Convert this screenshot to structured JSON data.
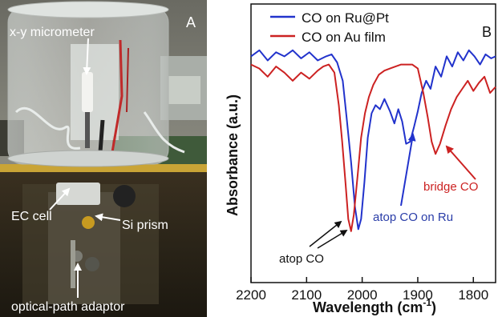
{
  "panel_a": {
    "panel_label": "A",
    "callouts": {
      "micrometer": "x-y micrometer",
      "ec_cell": "EC cell",
      "si_prism": "Si prism",
      "adaptor": "optical-path adaptor"
    }
  },
  "panel_b": {
    "panel_label": "B",
    "annotations": {
      "atop": "atop CO",
      "atop_ru": "atop CO on Ru",
      "bridge": "bridge  CO"
    }
  },
  "chart_data": {
    "type": "line",
    "title": "",
    "xlabel": "Wavelength (cm",
    "xlabel_sup": "-1",
    "xlabel_close": ")",
    "ylabel": "Absorbance (a.u.)",
    "xlim": [
      2200,
      1760
    ],
    "ylim": [
      0,
      1
    ],
    "x_ticks": [
      2200,
      2100,
      2000,
      1900,
      1800
    ],
    "x_tick_labels": [
      "2200",
      "2100",
      "2000",
      "1900",
      "1800"
    ],
    "legend_position": "top-center",
    "series": [
      {
        "name": "CO on Ru@Pt",
        "color": "#2233cc",
        "x": [
          2200,
          2185,
          2170,
          2155,
          2140,
          2125,
          2110,
          2095,
          2080,
          2065,
          2055,
          2045,
          2035,
          2028,
          2020,
          2013,
          2007,
          2002,
          1996,
          1990,
          1983,
          1976,
          1968,
          1960,
          1950,
          1942,
          1935,
          1928,
          1921,
          1914,
          1907,
          1900,
          1893,
          1885,
          1877,
          1868,
          1858,
          1848,
          1838,
          1828,
          1818,
          1808,
          1798,
          1788,
          1778,
          1768,
          1760
        ],
        "y": [
          0.9,
          0.93,
          0.88,
          0.92,
          0.9,
          0.93,
          0.89,
          0.92,
          0.88,
          0.9,
          0.91,
          0.87,
          0.78,
          0.6,
          0.38,
          0.16,
          0.05,
          0.1,
          0.28,
          0.5,
          0.62,
          0.66,
          0.64,
          0.69,
          0.63,
          0.57,
          0.64,
          0.58,
          0.47,
          0.48,
          0.55,
          0.63,
          0.72,
          0.78,
          0.74,
          0.85,
          0.8,
          0.9,
          0.85,
          0.92,
          0.88,
          0.93,
          0.9,
          0.86,
          0.91,
          0.89,
          0.9
        ]
      },
      {
        "name": "CO on Au film",
        "color": "#cc2222",
        "x": [
          2200,
          2185,
          2170,
          2155,
          2140,
          2125,
          2110,
          2095,
          2080,
          2070,
          2060,
          2050,
          2042,
          2036,
          2030,
          2025,
          2020,
          2015,
          2008,
          2002,
          1995,
          1988,
          1980,
          1970,
          1960,
          1950,
          1940,
          1930,
          1920,
          1910,
          1900,
          1890,
          1882,
          1875,
          1868,
          1860,
          1850,
          1840,
          1830,
          1820,
          1810,
          1800,
          1790,
          1780,
          1770,
          1760
        ],
        "y": [
          0.86,
          0.84,
          0.8,
          0.85,
          0.82,
          0.78,
          0.82,
          0.79,
          0.83,
          0.85,
          0.86,
          0.82,
          0.66,
          0.48,
          0.28,
          0.1,
          0.04,
          0.12,
          0.32,
          0.5,
          0.62,
          0.7,
          0.76,
          0.81,
          0.83,
          0.84,
          0.85,
          0.86,
          0.86,
          0.86,
          0.84,
          0.72,
          0.6,
          0.48,
          0.42,
          0.47,
          0.56,
          0.64,
          0.7,
          0.74,
          0.78,
          0.73,
          0.77,
          0.8,
          0.72,
          0.75
        ]
      }
    ]
  }
}
